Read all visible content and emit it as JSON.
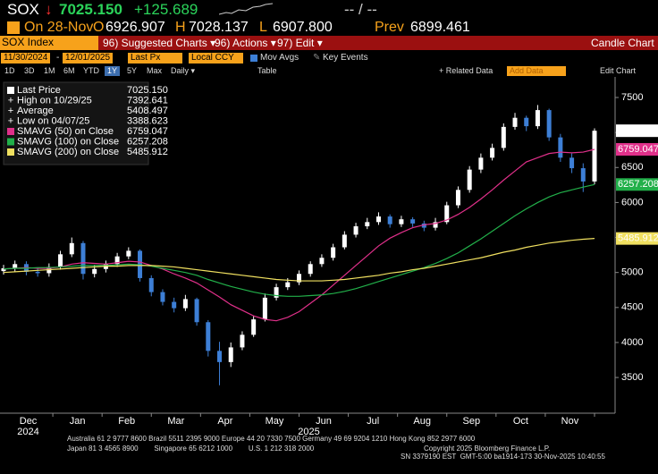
{
  "header": {
    "ticker": "SOX",
    "arrow": "↓",
    "last": "7025.150",
    "change": "+125.689",
    "bidask": "-- / --",
    "date": "On 28-Nov",
    "open_label": "O",
    "open": "6926.907",
    "high_label": "H",
    "high": "7028.137",
    "low_label": "L",
    "low": "6907.800",
    "prev_label": "Prev",
    "prev": "6899.461"
  },
  "menu": {
    "security": "SOX Index",
    "items": [
      "96) Suggested Charts ▾",
      "96) Actions ▾",
      "97) Edit ▾"
    ],
    "title": "Candle Chart"
  },
  "toolbar": {
    "start": "11/30/2024",
    "end": "12/01/2025",
    "field": "Last Px",
    "currency": "Local CCY",
    "mov_avgs": "Mov Avgs",
    "key_events": "Key Events"
  },
  "periods": [
    "1D",
    "3D",
    "1M",
    "6M",
    "YTD",
    "1Y",
    "5Y",
    "Max",
    "Daily ▾",
    "Table"
  ],
  "actions": {
    "related": "+ Related Data",
    "add_data": "Add Data",
    "edit_chart": "Edit Chart"
  },
  "chart_data": {
    "type": "candlestick",
    "up_color": "#ffffff",
    "down_color": "#3d7fd6",
    "open": [
      5020,
      5060,
      5120,
      5010,
      4990,
      5080,
      5260,
      5420,
      4980,
      5050,
      5120,
      5230,
      5310,
      4920,
      4720,
      4580,
      4490,
      4620,
      4290,
      3880,
      3720,
      3930,
      4110,
      4330,
      4640,
      4790,
      4860,
      4980,
      5120,
      5210,
      5360,
      5540,
      5660,
      5720,
      5800,
      5690,
      5760,
      5700,
      5640,
      5720,
      5960,
      6180,
      6470,
      6640,
      6780,
      7080,
      7210,
      7090,
      7320,
      6930,
      6640,
      6490,
      6300
    ],
    "high": [
      5110,
      5170,
      5160,
      5060,
      5130,
      5310,
      5500,
      5450,
      5110,
      5170,
      5280,
      5360,
      5330,
      4960,
      4760,
      4640,
      4680,
      4640,
      4320,
      4010,
      4000,
      4160,
      4380,
      4700,
      4840,
      4920,
      5030,
      5160,
      5260,
      5410,
      5590,
      5710,
      5780,
      5860,
      5830,
      5810,
      5790,
      5740,
      5780,
      6010,
      6230,
      6520,
      6700,
      6840,
      7130,
      7280,
      7240,
      7392.641,
      7340,
      6980,
      6700,
      6560,
      7060
    ],
    "low": [
      4970,
      5010,
      4960,
      4940,
      4940,
      5040,
      5220,
      4900,
      4930,
      5000,
      5080,
      5190,
      4870,
      4660,
      4530,
      4430,
      4450,
      4240,
      3800,
      3388.623,
      3650,
      3890,
      4080,
      4300,
      4600,
      4750,
      4820,
      4940,
      5080,
      5170,
      5330,
      5500,
      5620,
      5680,
      5640,
      5650,
      5650,
      5590,
      5600,
      5690,
      5920,
      6140,
      6420,
      6600,
      6740,
      7040,
      7020,
      7050,
      6880,
      6580,
      6420,
      6150,
      6260
    ],
    "close": [
      5060,
      5120,
      5010,
      4990,
      5080,
      5260,
      5420,
      4980,
      5050,
      5120,
      5230,
      5310,
      4920,
      4720,
      4580,
      4490,
      4620,
      4290,
      3880,
      3720,
      3930,
      4110,
      4330,
      4640,
      4790,
      4860,
      4980,
      5120,
      5210,
      5360,
      5540,
      5660,
      5720,
      5800,
      5690,
      5760,
      5700,
      5640,
      5720,
      5960,
      6180,
      6470,
      6640,
      6780,
      7080,
      7210,
      7090,
      7320,
      6930,
      6640,
      6490,
      6300,
      7025.15
    ],
    "series": [
      {
        "name": "SMAVG (50)",
        "color": "#e0308a",
        "values": [
          5050,
          5060,
          5070,
          5060,
          5060,
          5080,
          5120,
          5140,
          5130,
          5120,
          5140,
          5160,
          5150,
          5100,
          5050,
          4980,
          4920,
          4850,
          4750,
          4650,
          4540,
          4460,
          4380,
          4330,
          4310,
          4360,
          4440,
          4560,
          4680,
          4820,
          4960,
          5100,
          5240,
          5380,
          5490,
          5570,
          5640,
          5680,
          5700,
          5750,
          5830,
          5930,
          6050,
          6180,
          6320,
          6450,
          6580,
          6640,
          6700,
          6720,
          6710,
          6720,
          6759.047
        ]
      },
      {
        "name": "SMAVG (100)",
        "color": "#22b04a",
        "values": [
          5050,
          5060,
          5060,
          5070,
          5070,
          5080,
          5090,
          5100,
          5100,
          5100,
          5110,
          5120,
          5110,
          5090,
          5060,
          5030,
          5000,
          4960,
          4900,
          4850,
          4800,
          4760,
          4720,
          4690,
          4670,
          4660,
          4660,
          4670,
          4680,
          4700,
          4730,
          4770,
          4820,
          4870,
          4920,
          4970,
          5020,
          5070,
          5130,
          5200,
          5280,
          5380,
          5480,
          5590,
          5700,
          5810,
          5910,
          6000,
          6080,
          6140,
          6180,
          6220,
          6257.208
        ]
      },
      {
        "name": "SMAVG (200)",
        "color": "#f0e060",
        "values": [
          5000,
          5010,
          5020,
          5030,
          5040,
          5050,
          5060,
          5070,
          5080,
          5090,
          5090,
          5100,
          5100,
          5100,
          5090,
          5080,
          5060,
          5040,
          5020,
          5000,
          4980,
          4960,
          4940,
          4920,
          4900,
          4890,
          4880,
          4880,
          4880,
          4890,
          4900,
          4920,
          4940,
          4960,
          4990,
          5010,
          5040,
          5060,
          5090,
          5120,
          5150,
          5180,
          5210,
          5250,
          5290,
          5320,
          5360,
          5390,
          5420,
          5440,
          5460,
          5475,
          5485.912
        ]
      }
    ],
    "ylim": [
      2990,
      7794
    ],
    "yticks": [
      3500,
      4000,
      4500,
      5000,
      5500,
      6000,
      6500,
      7000,
      7500
    ],
    "grid": false,
    "months": [
      "Dec",
      "Jan",
      "Feb",
      "Mar",
      "Apr",
      "May",
      "Jun",
      "Jul",
      "Aug",
      "Sep",
      "Oct",
      "Nov"
    ],
    "years": [
      "2024",
      "2025"
    ],
    "legend": [
      {
        "label": "Last Price",
        "value": "7025.150",
        "color": "#ffffff"
      },
      {
        "label": "High on 10/29/25",
        "value": "7392.641"
      },
      {
        "label": "Average",
        "value": "5408.497"
      },
      {
        "label": "Low on 04/07/25",
        "value": "3388.623"
      },
      {
        "label": "SMAVG (50)  on Close",
        "value": "6759.047",
        "color": "#e0308a"
      },
      {
        "label": "SMAVG (100)  on Close",
        "value": "6257.208",
        "color": "#22b04a"
      },
      {
        "label": "SMAVG (200)  on Close",
        "value": "5485.912",
        "color": "#f0e060"
      }
    ]
  },
  "footer": [
    "Australia 61 2 9777 8600 Brazil 5511 2395 9000 Europe 44 20 7330 7500 Germany 49 69 9204 1210 Hong Kong 852 2977 6000",
    "Japan 81 3 4565 8900        Singapore 65 6212 1000        U.S. 1 212 318 2000",
    "Copyright 2025 Bloomberg Finance L.P.",
    "SN 3379190 EST  GMT-5:00 ba1914-173 30-Nov-2025 10:40:55"
  ]
}
